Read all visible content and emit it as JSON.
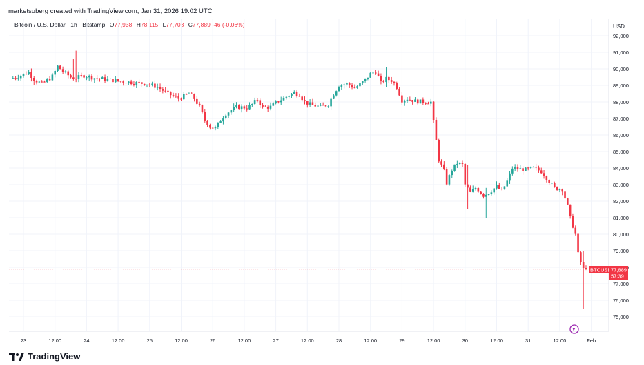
{
  "header": {
    "credit": "marketsuberg created with TradingView.com, Jan 31, 2026 19:02 UTC"
  },
  "symbol_bar": {
    "name": "Bitcoin / U.S. Dollar · 1h · Bitstamp",
    "open_label": "O",
    "open": "77,938",
    "high_label": "H",
    "high": "78,115",
    "low_label": "L",
    "low": "77,703",
    "close_label": "C",
    "close": "77,889",
    "change": "-46 (-0.06%)"
  },
  "price_badge": {
    "symbol": "BTCUSD",
    "price": "77,889",
    "countdown": "57:39"
  },
  "footer": {
    "brand": "TradingView"
  },
  "colors": {
    "up": "#26a69a",
    "down": "#f23645",
    "grid": "#f0f3fa",
    "axis_text": "#131722"
  },
  "chart_data": {
    "type": "candlestick",
    "currency": "USD",
    "ylim": [
      74500,
      92700
    ],
    "y_ticks": [
      {
        "v": 92000,
        "label": "92,000"
      },
      {
        "v": 91000,
        "label": "91,000"
      },
      {
        "v": 90000,
        "label": "90,000"
      },
      {
        "v": 89000,
        "label": "89,000"
      },
      {
        "v": 88000,
        "label": "88,000"
      },
      {
        "v": 87000,
        "label": "87,000"
      },
      {
        "v": 86000,
        "label": "86,000"
      },
      {
        "v": 85000,
        "label": "85,000"
      },
      {
        "v": 84000,
        "label": "84,000"
      },
      {
        "v": 83000,
        "label": "83,000"
      },
      {
        "v": 82000,
        "label": "82,000"
      },
      {
        "v": 81000,
        "label": "81,000"
      },
      {
        "v": 80000,
        "label": "80,000"
      },
      {
        "v": 79000,
        "label": "79,000"
      },
      {
        "v": 78000,
        "label": "78,000"
      },
      {
        "v": 77000,
        "label": "77,000"
      },
      {
        "v": 76000,
        "label": "76,000"
      },
      {
        "v": 75000,
        "label": "75,000"
      }
    ],
    "x_ticks": [
      {
        "t": 0,
        "label": "23"
      },
      {
        "t": 12,
        "label": "12:00"
      },
      {
        "t": 24,
        "label": "24"
      },
      {
        "t": 36,
        "label": "12:00"
      },
      {
        "t": 48,
        "label": "25"
      },
      {
        "t": 60,
        "label": "12:00"
      },
      {
        "t": 72,
        "label": "26"
      },
      {
        "t": 84,
        "label": "12:00"
      },
      {
        "t": 96,
        "label": "27"
      },
      {
        "t": 108,
        "label": "12:00"
      },
      {
        "t": 120,
        "label": "28"
      },
      {
        "t": 132,
        "label": "12:00"
      },
      {
        "t": 144,
        "label": "29"
      },
      {
        "t": 156,
        "label": "12:00"
      },
      {
        "t": 168,
        "label": "30"
      },
      {
        "t": 180,
        "label": "12:00"
      },
      {
        "t": 192,
        "label": "31"
      },
      {
        "t": 204,
        "label": "12:00"
      },
      {
        "t": 216,
        "label": "Feb"
      }
    ],
    "key_points": [
      [
        -4,
        89400
      ],
      [
        0,
        89600
      ],
      [
        3,
        89800
      ],
      [
        5,
        89350
      ],
      [
        8,
        89100
      ],
      [
        10,
        89300
      ],
      [
        12,
        89550
      ],
      [
        14,
        90150
      ],
      [
        16,
        89850
      ],
      [
        19,
        89500
      ],
      [
        21,
        89450
      ],
      [
        24,
        89600
      ],
      [
        28,
        89450
      ],
      [
        33,
        89350
      ],
      [
        38,
        89250
      ],
      [
        44,
        89150
      ],
      [
        48,
        89100
      ],
      [
        52,
        88900
      ],
      [
        56,
        88500
      ],
      [
        60,
        88200
      ],
      [
        64,
        88500
      ],
      [
        66,
        88200
      ],
      [
        68,
        87700
      ],
      [
        70,
        86900
      ],
      [
        72,
        86500
      ],
      [
        74,
        86400
      ],
      [
        76,
        86900
      ],
      [
        78,
        87300
      ],
      [
        82,
        87700
      ],
      [
        86,
        87650
      ],
      [
        88,
        87850
      ],
      [
        90,
        88150
      ],
      [
        92,
        87650
      ],
      [
        95,
        87700
      ],
      [
        98,
        88050
      ],
      [
        102,
        88400
      ],
      [
        104,
        88550
      ],
      [
        106,
        88450
      ],
      [
        108,
        88000
      ],
      [
        110,
        87850
      ],
      [
        114,
        87700
      ],
      [
        117,
        87850
      ],
      [
        119,
        88500
      ],
      [
        121,
        89000
      ],
      [
        124,
        89100
      ],
      [
        127,
        88850
      ],
      [
        129,
        89050
      ],
      [
        131,
        89350
      ],
      [
        133,
        89700
      ],
      [
        135,
        89850
      ],
      [
        137,
        89150
      ],
      [
        139,
        89400
      ],
      [
        141,
        89300
      ],
      [
        143,
        88900
      ],
      [
        145,
        88100
      ],
      [
        147,
        88200
      ],
      [
        150,
        88050
      ],
      [
        153,
        88000
      ],
      [
        156,
        88000
      ],
      [
        157,
        86800
      ],
      [
        159,
        84500
      ],
      [
        161,
        83800
      ],
      [
        162,
        83100
      ],
      [
        164,
        83900
      ],
      [
        166,
        84300
      ],
      [
        168,
        84200
      ],
      [
        169,
        83000
      ],
      [
        171,
        82500
      ],
      [
        173,
        82800
      ],
      [
        176,
        82350
      ],
      [
        178,
        82500
      ],
      [
        181,
        82900
      ],
      [
        183,
        82600
      ],
      [
        185,
        83200
      ],
      [
        187,
        84000
      ],
      [
        189,
        83950
      ],
      [
        192,
        83900
      ],
      [
        195,
        84000
      ],
      [
        198,
        83800
      ],
      [
        200,
        83400
      ],
      [
        203,
        82800
      ],
      [
        206,
        82700
      ],
      [
        208,
        81700
      ],
      [
        209,
        81000
      ],
      [
        211,
        80000
      ],
      [
        212,
        78800
      ],
      [
        213,
        78300
      ],
      [
        214,
        77889
      ]
    ],
    "wicks_extra": [
      [
        20,
        91100,
        89600
      ],
      [
        19,
        90600,
        89300
      ],
      [
        133,
        90300,
        89300
      ],
      [
        138,
        90100,
        88900
      ],
      [
        213,
        79000,
        75500
      ],
      [
        176,
        82800,
        81000
      ],
      [
        169,
        84200,
        81500
      ]
    ],
    "last_price": 77889
  }
}
